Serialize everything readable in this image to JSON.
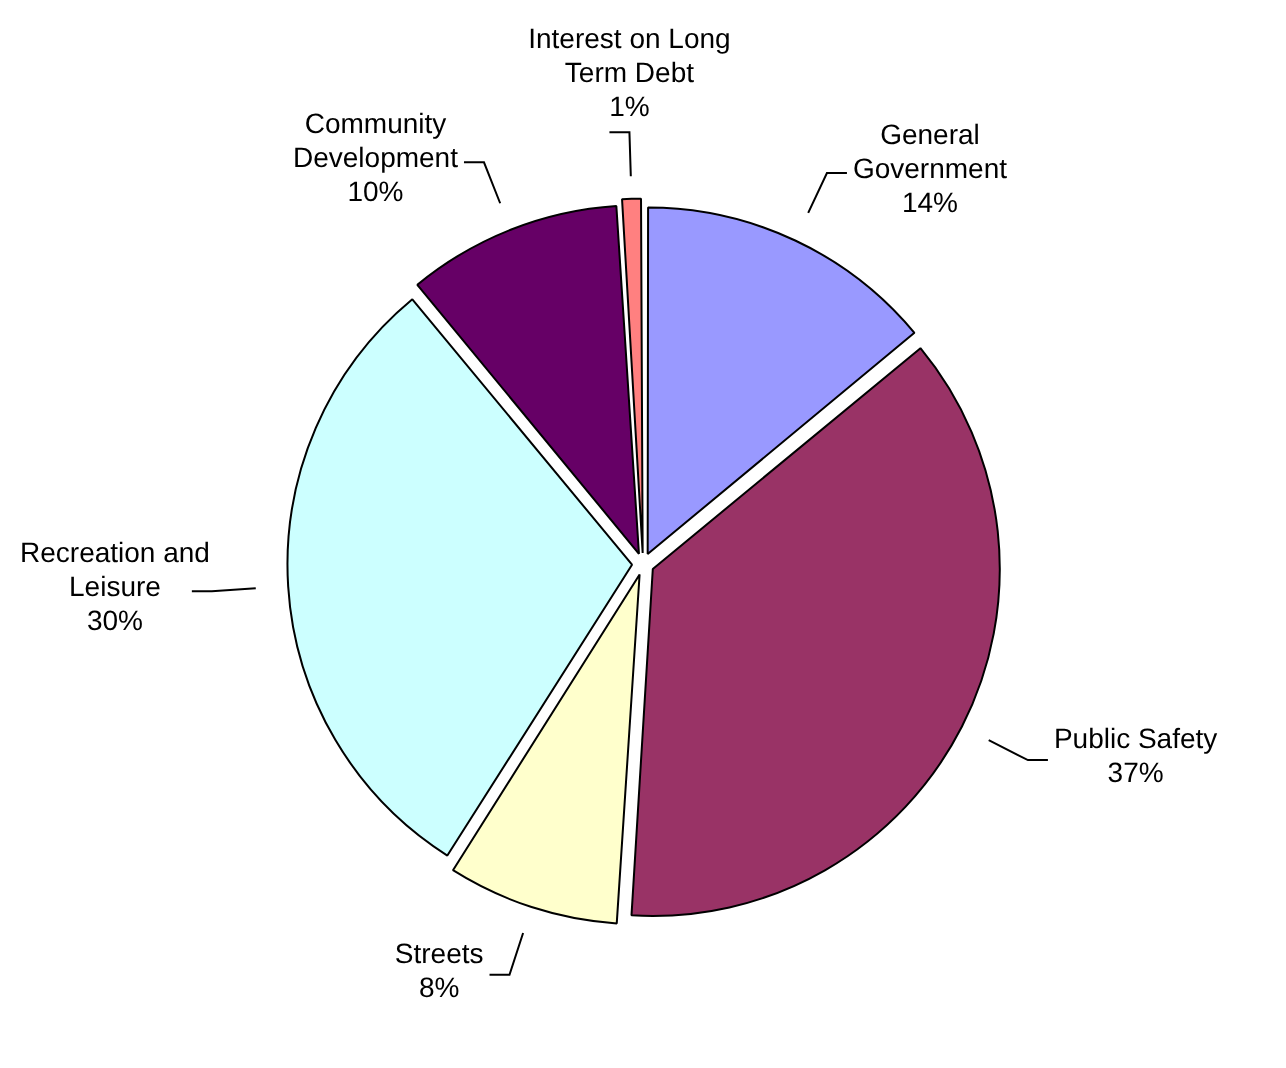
{
  "chart_data": {
    "type": "pie",
    "categories": [
      "General Government",
      "Public Safety",
      "Streets",
      "Recreation and Leisure",
      "Community Development",
      "Interest on Long Term Debt"
    ],
    "values": [
      14,
      37,
      8,
      30,
      10,
      1
    ],
    "colors": [
      "#9999ff",
      "#993366",
      "#ffffcc",
      "#ccffff",
      "#660066",
      "#ff8080"
    ],
    "value_labels": [
      "14%",
      "37%",
      "8%",
      "30%",
      "10%",
      "1%"
    ],
    "legend": false
  }
}
